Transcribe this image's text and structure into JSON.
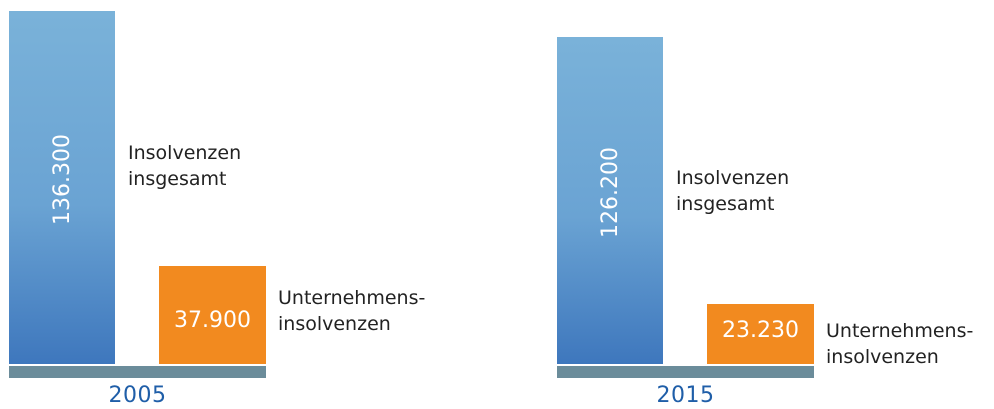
{
  "chart_data": {
    "type": "bar",
    "categories": [
      "2005",
      "2015"
    ],
    "series": [
      {
        "name": "Insolvenzen insgesamt",
        "values": [
          136300,
          126200
        ],
        "labels": [
          "136.300",
          "126.200"
        ],
        "color": "#6aa3d3"
      },
      {
        "name": "Unternehmensinsolvenzen",
        "values": [
          37900,
          23230
        ],
        "labels": [
          "37.900",
          "23.230"
        ],
        "color": "#f28a1f"
      }
    ],
    "legend_texts": {
      "total": [
        "Insolvenzen",
        "insgesamt"
      ],
      "enterprise": [
        "Unternehmens-",
        "insolvenzen"
      ]
    },
    "colors": {
      "baseline": "#6b8c9a",
      "year": "#1f5ea8"
    },
    "ylim": [
      0,
      136300
    ]
  }
}
